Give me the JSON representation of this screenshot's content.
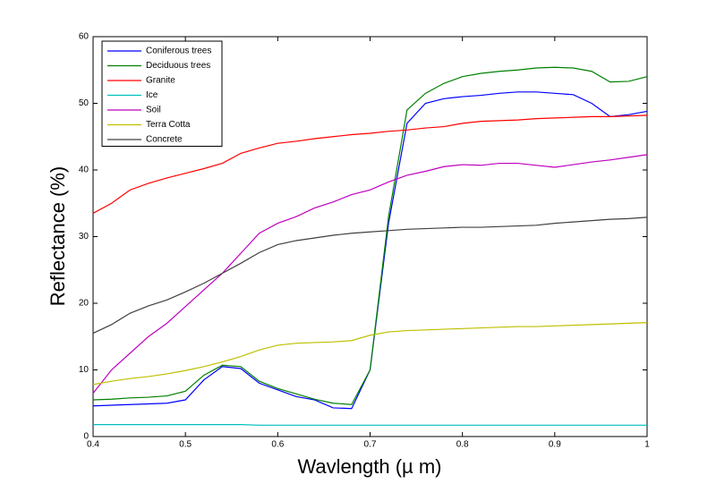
{
  "chart_data": {
    "type": "line",
    "xlabel": "Wavlength (µ m)",
    "ylabel": "Reflectance (%)",
    "x": [
      0.4,
      0.42,
      0.44,
      0.46,
      0.48,
      0.5,
      0.52,
      0.54,
      0.56,
      0.58,
      0.6,
      0.62,
      0.64,
      0.66,
      0.68,
      0.7,
      0.72,
      0.74,
      0.76,
      0.78,
      0.8,
      0.82,
      0.84,
      0.86,
      0.88,
      0.9,
      0.92,
      0.94,
      0.96,
      0.98,
      1.0
    ],
    "xlim": [
      0.4,
      1
    ],
    "xticks": [
      0.4,
      0.5,
      0.6,
      0.7,
      0.8,
      0.9,
      1
    ],
    "ylim": [
      0,
      60
    ],
    "yticks": [
      0,
      10,
      20,
      30,
      40,
      50,
      60
    ],
    "legend": "upper left",
    "series": [
      {
        "name": "Coniferous trees",
        "color": "#0000ff",
        "values": [
          4.6,
          4.7,
          4.8,
          4.9,
          5.0,
          5.5,
          8.5,
          10.5,
          10.2,
          8.0,
          7.0,
          6.0,
          5.5,
          4.3,
          4.2,
          10,
          32,
          47,
          50,
          50.7,
          51,
          51.2,
          51.5,
          51.7,
          51.7,
          51.5,
          51.3,
          50,
          48,
          48.3,
          48.8
        ]
      },
      {
        "name": "Deciduous trees",
        "color": "#008000",
        "values": [
          5.5,
          5.6,
          5.8,
          5.9,
          6.1,
          6.8,
          9.2,
          10.7,
          10.5,
          8.3,
          7.2,
          6.4,
          5.6,
          5.0,
          4.8,
          10,
          33,
          49,
          51.5,
          53,
          54,
          54.5,
          54.8,
          55,
          55.3,
          55.4,
          55.3,
          54.8,
          53.2,
          53.3,
          54
        ]
      },
      {
        "name": "Granite",
        "color": "#ff0000",
        "values": [
          33.5,
          35,
          37,
          38,
          38.8,
          39.5,
          40.2,
          41,
          42.5,
          43.3,
          44,
          44.3,
          44.7,
          45,
          45.3,
          45.5,
          45.8,
          46,
          46.3,
          46.5,
          47,
          47.3,
          47.4,
          47.5,
          47.7,
          47.8,
          47.9,
          48,
          48,
          48.1,
          48.2
        ]
      },
      {
        "name": "Ice",
        "color": "#00bfbf",
        "values": [
          1.8,
          1.8,
          1.8,
          1.8,
          1.8,
          1.8,
          1.8,
          1.8,
          1.8,
          1.7,
          1.7,
          1.7,
          1.7,
          1.7,
          1.7,
          1.7,
          1.7,
          1.7,
          1.7,
          1.7,
          1.7,
          1.7,
          1.7,
          1.7,
          1.7,
          1.7,
          1.7,
          1.7,
          1.7,
          1.7,
          1.7
        ]
      },
      {
        "name": "Soil",
        "color": "#bf00bf",
        "values": [
          6.5,
          10,
          12.5,
          15,
          17,
          19.5,
          22,
          24.5,
          27.5,
          30.5,
          32,
          33,
          34.3,
          35.2,
          36.3,
          37,
          38.2,
          39.2,
          39.8,
          40.5,
          40.8,
          40.7,
          41,
          41,
          40.7,
          40.4,
          40.8,
          41.2,
          41.5,
          41.9,
          42.3
        ]
      },
      {
        "name": "Terra Cotta",
        "color": "#bfbf00",
        "values": [
          7.8,
          8.3,
          8.7,
          9.0,
          9.4,
          9.9,
          10.5,
          11.2,
          12.0,
          13.0,
          13.7,
          14.0,
          14.1,
          14.2,
          14.4,
          15.2,
          15.7,
          15.9,
          16.0,
          16.1,
          16.2,
          16.3,
          16.4,
          16.5,
          16.5,
          16.6,
          16.7,
          16.8,
          16.9,
          17.0,
          17.1
        ]
      },
      {
        "name": "Concrete",
        "color": "#404040",
        "values": [
          15.5,
          16.8,
          18.5,
          19.6,
          20.5,
          21.7,
          23,
          24.5,
          26,
          27.6,
          28.8,
          29.4,
          29.8,
          30.2,
          30.5,
          30.7,
          30.9,
          31.1,
          31.2,
          31.3,
          31.4,
          31.4,
          31.5,
          31.6,
          31.7,
          32,
          32.2,
          32.4,
          32.6,
          32.7,
          32.9
        ]
      }
    ]
  }
}
